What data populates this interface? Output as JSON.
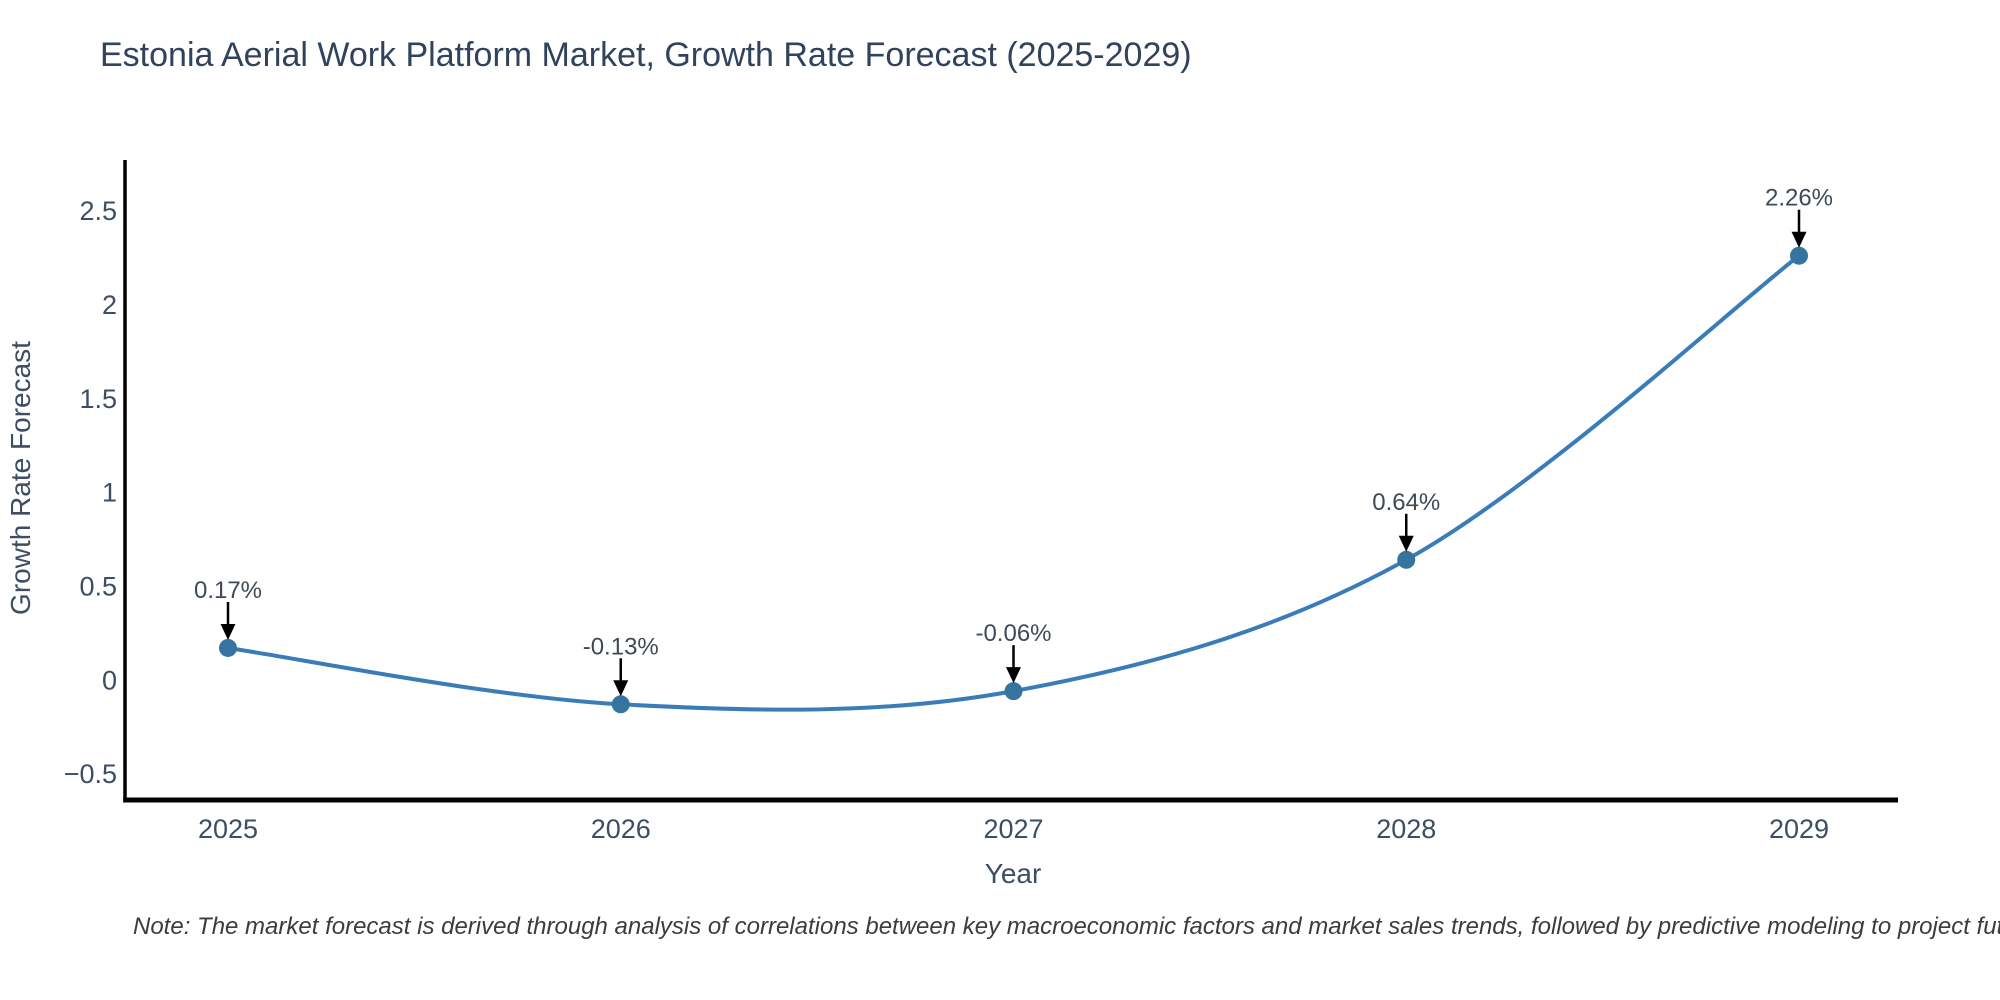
{
  "page": {
    "background": "#ffffff"
  },
  "chart_data": {
    "type": "line",
    "title": "Estonia Aerial Work Platform Market, Growth Rate Forecast (2025-2029)",
    "xlabel": "Year",
    "ylabel": "Growth Rate Forecast",
    "categories": [
      "2025",
      "2026",
      "2027",
      "2028",
      "2029"
    ],
    "series": [
      {
        "name": "Growth Rate Forecast",
        "values": [
          0.17,
          -0.13,
          -0.06,
          0.64,
          2.26
        ]
      }
    ],
    "point_labels": [
      "0.17%",
      "-0.13%",
      "-0.06%",
      "0.64%",
      "2.26%"
    ],
    "line_shape": "spline",
    "grid": false,
    "legend": false,
    "y_ticks": [
      {
        "v": -0.5,
        "label": "−0.5"
      },
      {
        "v": 0,
        "label": "0"
      },
      {
        "v": 0.5,
        "label": "0.5"
      },
      {
        "v": 1,
        "label": "1"
      },
      {
        "v": 1.5,
        "label": "1.5"
      },
      {
        "v": 2,
        "label": "2"
      },
      {
        "v": 2.5,
        "label": "2.5"
      }
    ],
    "ylim": [
      -0.64,
      2.77
    ],
    "colors": {
      "line": "#3a7cb8",
      "marker": "#35749e",
      "axis": "#000000",
      "title_text": "#31435c",
      "tick_text": "#3d4d63",
      "annotation_text": "#3f4a57",
      "arrow": "#000000",
      "note_text": "#3c3c3c"
    },
    "note": "Note: The market forecast is derived through analysis of correlations between key macroeconomic factors and market sales trends, followed by predictive modeling to project future sales."
  }
}
